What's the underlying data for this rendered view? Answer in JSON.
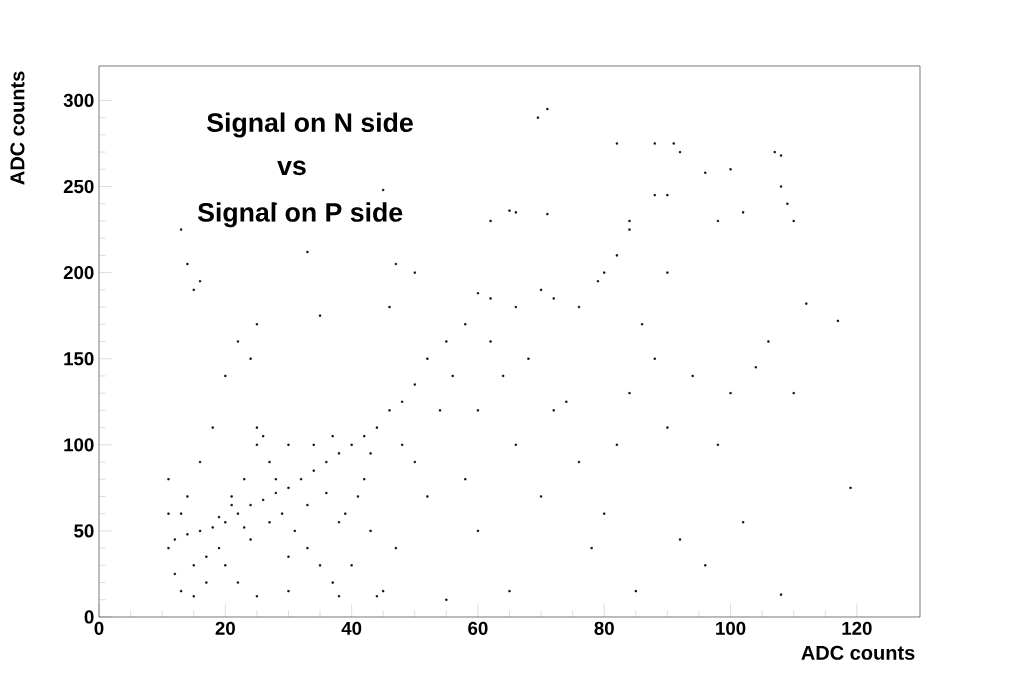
{
  "chart_data": {
    "type": "scatter",
    "xlabel": "ADC counts",
    "ylabel": "ADC counts",
    "annotations": [
      "Signal on N side",
      "vs",
      "Signal on P side"
    ],
    "xlim": [
      0,
      130
    ],
    "ylim": [
      0,
      320
    ],
    "xticks": [
      0,
      20,
      40,
      60,
      80,
      100,
      120
    ],
    "yticks": [
      0,
      50,
      100,
      150,
      200,
      250,
      300
    ],
    "marker": "square",
    "grid": false,
    "series": [
      {
        "color": "#000000",
        "x": [
          69.5,
          71,
          82,
          88,
          91,
          92,
          107,
          108,
          100,
          96,
          108,
          109,
          110,
          102,
          98,
          88,
          90,
          84,
          71,
          62,
          65,
          45,
          33,
          14,
          16,
          28,
          13,
          15,
          80,
          82,
          84,
          79,
          76,
          72,
          70,
          66,
          62,
          60,
          58,
          55,
          52,
          50,
          48,
          46,
          44,
          42,
          40,
          38,
          36,
          34,
          32,
          30,
          28,
          26,
          24,
          22,
          20,
          18,
          16,
          14,
          12,
          11,
          11,
          11,
          12,
          13,
          15,
          17,
          19,
          21,
          23,
          25,
          25,
          27,
          29,
          31,
          33,
          35,
          37,
          39,
          41,
          43,
          45,
          44,
          47,
          50,
          54,
          56,
          60,
          62,
          64,
          66,
          68,
          70,
          72,
          74,
          76,
          78,
          80,
          82,
          84,
          86,
          88,
          90,
          92,
          94,
          96,
          98,
          100,
          102,
          104,
          106,
          108,
          112,
          117,
          119,
          110,
          85,
          65,
          55,
          60,
          58,
          52,
          48,
          46,
          47,
          50,
          35,
          25,
          22,
          20,
          24,
          26,
          30,
          18,
          16,
          14,
          13,
          20,
          22,
          24,
          27,
          30,
          33,
          36,
          38,
          40,
          42,
          43,
          37,
          34,
          28,
          21,
          19,
          23,
          17,
          15,
          25,
          30,
          38,
          66,
          90
        ],
        "values": [
          290,
          295,
          275,
          275,
          275,
          270,
          270,
          268,
          260,
          258,
          250,
          240,
          230,
          235,
          230,
          245,
          245,
          230,
          234,
          230,
          236,
          248,
          212,
          205,
          195,
          240,
          225,
          190,
          200,
          210,
          225,
          195,
          180,
          185,
          190,
          180,
          185,
          188,
          170,
          160,
          150,
          135,
          125,
          120,
          110,
          105,
          100,
          95,
          90,
          85,
          80,
          75,
          72,
          68,
          65,
          60,
          55,
          52,
          50,
          48,
          45,
          40,
          60,
          80,
          25,
          15,
          30,
          20,
          40,
          70,
          80,
          100,
          110,
          90,
          60,
          50,
          40,
          30,
          20,
          60,
          70,
          50,
          15,
          12,
          40,
          90,
          120,
          140,
          120,
          160,
          140,
          100,
          150,
          70,
          120,
          125,
          90,
          40,
          60,
          100,
          130,
          170,
          150,
          110,
          45,
          140,
          30,
          100,
          130,
          55,
          145,
          160,
          13,
          182,
          172,
          75,
          130,
          15,
          15,
          10,
          50,
          80,
          70,
          100,
          180,
          205,
          200,
          175,
          170,
          160,
          140,
          150,
          105,
          100,
          110,
          90,
          70,
          60,
          30,
          20,
          45,
          55,
          35,
          65,
          72,
          55,
          30,
          80,
          95,
          105,
          100,
          80,
          65,
          58,
          52,
          35,
          12,
          12,
          15,
          12,
          235,
          200
        ]
      }
    ]
  }
}
